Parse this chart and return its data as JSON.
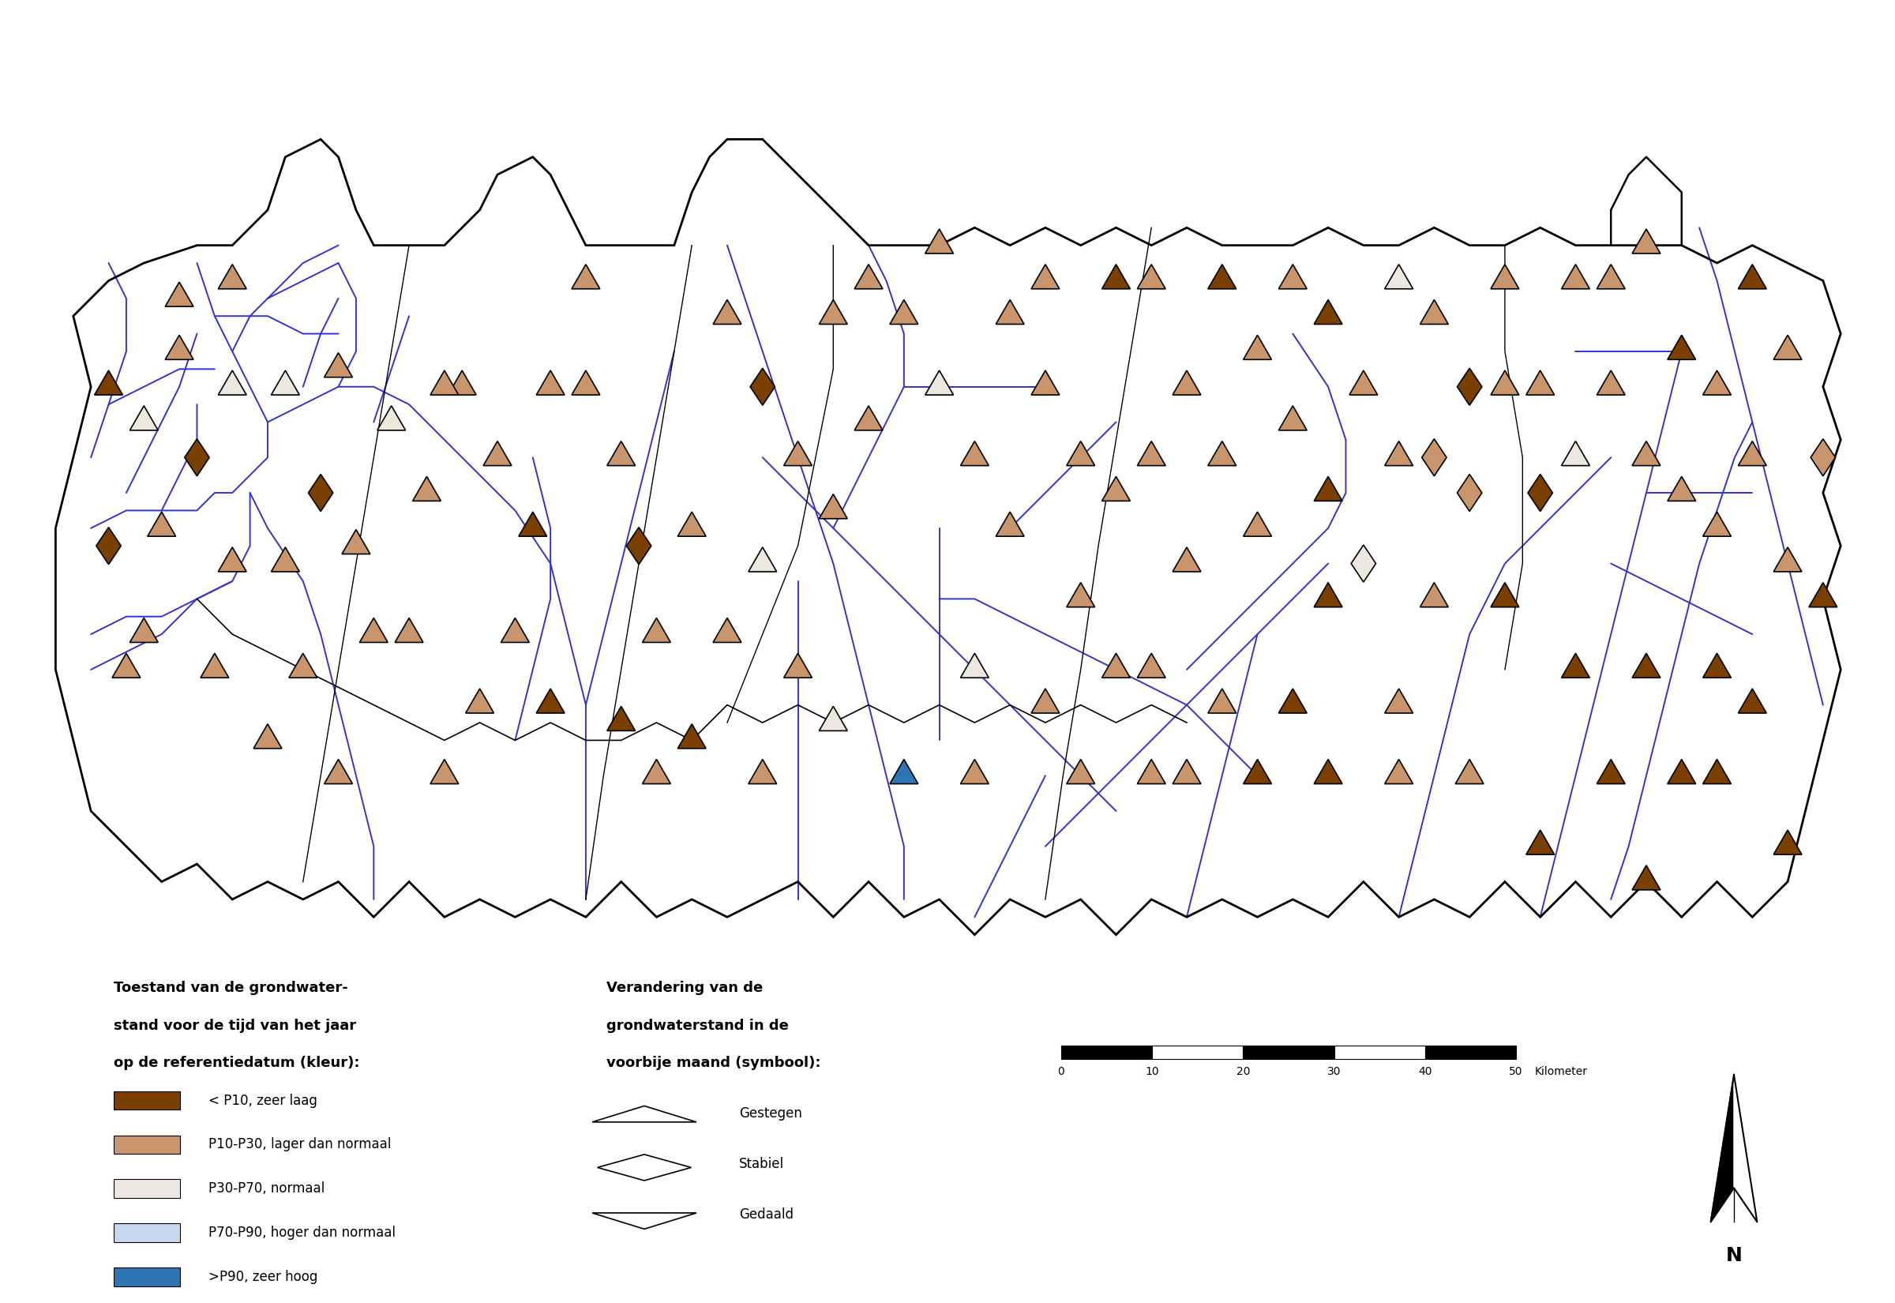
{
  "legend1_title_line1": "Toestand van de grondwater-",
  "legend1_title_line2": "stand voor de tijd van het jaar",
  "legend1_title_line3": "op de referentiedatum (kleur):",
  "legend1_items": [
    {
      "label": "< P10, zeer laag",
      "color": "#7B3F00"
    },
    {
      "label": "P10-P30, lager dan normaal",
      "color": "#C8956C"
    },
    {
      "label": "P30-P70, normaal",
      "color": "#EDE8DF"
    },
    {
      "label": "P70-P90, hoger dan normaal",
      "color": "#C5D8EE"
    },
    {
      "label": ">P90, zeer hoog",
      "color": "#2E75B6"
    }
  ],
  "legend2_title_line1": "Verandering van de",
  "legend2_title_line2": "grondwaterstand in de",
  "legend2_title_line3": "voorbije maand (symbool):",
  "legend2_items": [
    {
      "label": "Gestegen",
      "symbol": "triangle_up"
    },
    {
      "label": "Stabiel",
      "symbol": "diamond"
    },
    {
      "label": "Gedaald",
      "symbol": "triangle_down"
    }
  ],
  "bg_color": "#FFFFFF",
  "river_color": "#3333CC",
  "border_color": "#000000",
  "VL": "#7B3F00",
  "LO": "#C8956C",
  "NO": "#EDE8DF",
  "HI": "#C5D8EE",
  "VH": "#2E75B6"
}
